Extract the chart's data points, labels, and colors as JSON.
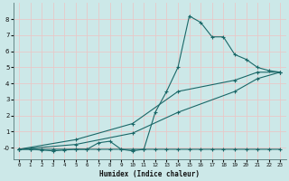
{
  "bg_color": "#cce8e8",
  "grid_color": "#e8c8c8",
  "line_color": "#1a6868",
  "xlabel": "Humidex (Indice chaleur)",
  "xlim": [
    -0.5,
    23.5
  ],
  "ylim": [
    -0.7,
    9.0
  ],
  "yticks": [
    0,
    1,
    2,
    3,
    4,
    5,
    6,
    7,
    8
  ],
  "ytick_labels": [
    "-0",
    "1",
    "2",
    "3",
    "4",
    "5",
    "6",
    "7",
    "8"
  ],
  "xticks": [
    0,
    1,
    2,
    3,
    4,
    5,
    6,
    7,
    8,
    9,
    10,
    11,
    12,
    13,
    14,
    15,
    16,
    17,
    18,
    19,
    20,
    21,
    22,
    23
  ],
  "line1_x": [
    0,
    1,
    2,
    3,
    4,
    5,
    6,
    7,
    8,
    9,
    10,
    11,
    12,
    13,
    14,
    15,
    16,
    17,
    18,
    19,
    20,
    21,
    22,
    23
  ],
  "line1_y": [
    -0.1,
    -0.1,
    -0.15,
    -0.2,
    -0.15,
    -0.1,
    -0.1,
    -0.1,
    -0.1,
    -0.1,
    -0.1,
    -0.1,
    -0.1,
    -0.1,
    -0.1,
    -0.1,
    -0.1,
    -0.1,
    -0.1,
    -0.1,
    -0.1,
    -0.1,
    -0.1,
    -0.1
  ],
  "line2_x": [
    0,
    1,
    2,
    3,
    4,
    5,
    6,
    7,
    8,
    9,
    10,
    11,
    12,
    13,
    14,
    15,
    16,
    17,
    18,
    19,
    20,
    21,
    22,
    23
  ],
  "line2_y": [
    -0.1,
    -0.1,
    -0.1,
    -0.1,
    -0.1,
    -0.1,
    -0.1,
    0.3,
    0.4,
    -0.1,
    -0.2,
    -0.1,
    2.2,
    3.5,
    5.0,
    8.2,
    7.8,
    6.9,
    6.9,
    5.8,
    5.5,
    5.0,
    4.8,
    4.7
  ],
  "line3_x": [
    0,
    5,
    10,
    14,
    19,
    21,
    23
  ],
  "line3_y": [
    -0.1,
    0.5,
    1.5,
    3.5,
    4.2,
    4.7,
    4.7
  ],
  "line4_x": [
    0,
    5,
    10,
    14,
    19,
    21,
    23
  ],
  "line4_y": [
    -0.1,
    0.2,
    0.9,
    2.2,
    3.5,
    4.3,
    4.7
  ]
}
